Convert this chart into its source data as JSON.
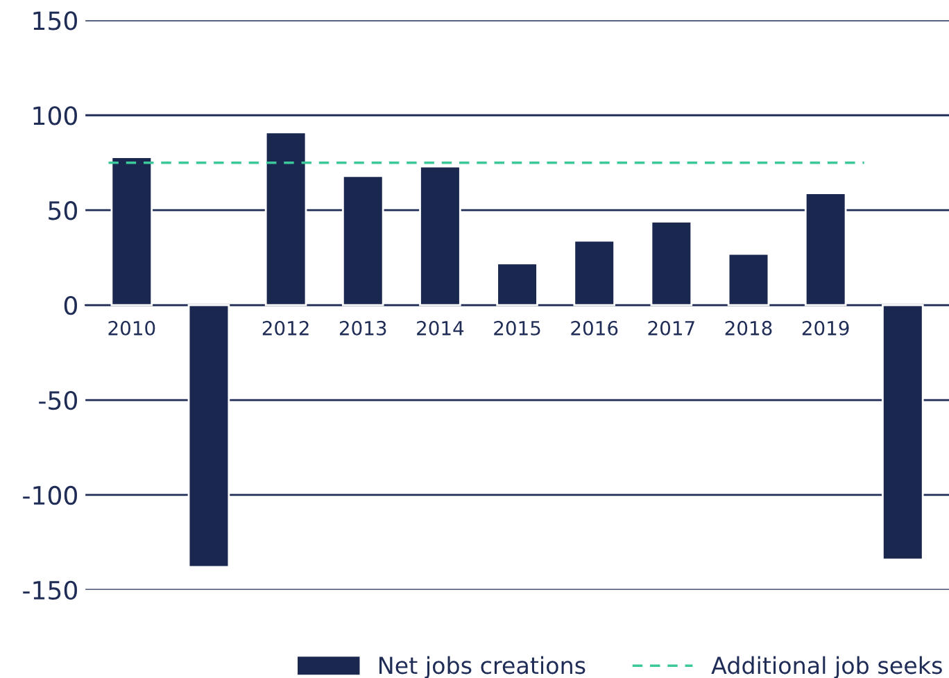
{
  "chart_data": {
    "type": "bar",
    "categories": [
      "2010",
      null,
      "2012",
      "2013",
      "2014",
      "2015",
      "2016",
      "2017",
      "2018",
      "2019",
      null
    ],
    "series": [
      {
        "name": "Net jobs creations",
        "color": "#1a2850",
        "values": [
          78,
          -138,
          91,
          68,
          73,
          22,
          34,
          44,
          27,
          59,
          -134
        ]
      }
    ],
    "ref_lines": [
      {
        "axis": "y",
        "value": 75,
        "label": "Additional job seeks",
        "color": "#3cc89a",
        "line_style": "dashed"
      }
    ],
    "ylim": [
      -150,
      150
    ],
    "yticks": [
      -150,
      -100,
      -50,
      0,
      50,
      100,
      150
    ],
    "grid": "y",
    "legend": "bottom"
  }
}
